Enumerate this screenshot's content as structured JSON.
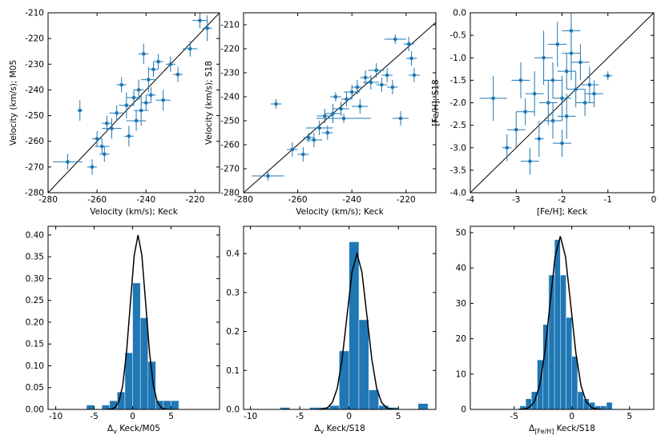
{
  "chart_data": [
    {
      "type": "scatter",
      "xlabel": "Velocity (km/s); Keck",
      "ylabel": "Velocity (km/s); M05",
      "color": "#1f77b4",
      "diagonal": true,
      "xlim": [
        -280,
        -210
      ],
      "ylim": [
        -280,
        -210
      ],
      "xticks": [
        -280,
        -260,
        -240,
        -220
      ],
      "yticks": [
        -280,
        -270,
        -260,
        -250,
        -240,
        -230,
        -220,
        -210
      ],
      "x": [
        -272,
        -267,
        -262,
        -260,
        -258,
        -256,
        -254,
        -252,
        -250,
        -248,
        -247,
        -245,
        -244,
        -243,
        -242,
        -241,
        -240,
        -239,
        -238,
        -237,
        -235,
        -233,
        -230,
        -227,
        -222,
        -215,
        -218,
        -257
      ],
      "y": [
        -268,
        -248,
        -270,
        -259,
        -262,
        -253,
        -255,
        -249,
        -238,
        -246,
        -258,
        -243,
        -252,
        -240,
        -248,
        -226,
        -245,
        -236,
        -242,
        -232,
        -229,
        -244,
        -230,
        -234,
        -224,
        -216,
        -213,
        -265
      ],
      "xerr": [
        6,
        1,
        2,
        2,
        3,
        2,
        4,
        3,
        2,
        3,
        2,
        3,
        4,
        2,
        3,
        2,
        2,
        3,
        2,
        2,
        2,
        3,
        2,
        2,
        3,
        2,
        3,
        2
      ],
      "yerr": [
        3,
        4,
        3,
        3,
        3,
        3,
        4,
        3,
        3,
        5,
        4,
        3,
        4,
        4,
        6,
        4,
        3,
        5,
        3,
        3,
        3,
        4,
        3,
        3,
        3,
        5,
        3,
        3
      ]
    },
    {
      "type": "scatter",
      "xlabel": "Velocity (km/s); Keck",
      "ylabel": "Velocity (km/s); S18",
      "color": "#1f77b4",
      "diagonal": true,
      "xlim": [
        -280,
        -209
      ],
      "ylim": [
        -280,
        -205
      ],
      "xticks": [
        -280,
        -260,
        -240,
        -220
      ],
      "yticks": [
        -280,
        -270,
        -260,
        -250,
        -240,
        -230,
        -220,
        -210
      ],
      "x": [
        -271,
        -262,
        -258,
        -256,
        -254,
        -252,
        -250,
        -249,
        -247,
        -246,
        -244,
        -243,
        -242,
        -240,
        -238,
        -237,
        -235,
        -233,
        -231,
        -229,
        -227,
        -225,
        -222,
        -219,
        -218,
        -217,
        -224,
        -268
      ],
      "y": [
        -273,
        -262,
        -264,
        -257,
        -258,
        -253,
        -248,
        -255,
        -247,
        -240,
        -245,
        -249,
        -241,
        -238,
        -236,
        -244,
        -232,
        -234,
        -229,
        -235,
        -231,
        -236,
        -249,
        -218,
        -224,
        -231,
        -216,
        -243
      ],
      "xerr": [
        6,
        2,
        2,
        2,
        3,
        5,
        3,
        2,
        3,
        2,
        3,
        10,
        2,
        3,
        2,
        3,
        2,
        3,
        3,
        2,
        2,
        2,
        3,
        2,
        2,
        2,
        4,
        2
      ],
      "yerr": [
        2,
        3,
        3,
        2,
        3,
        3,
        3,
        3,
        4,
        2,
        3,
        2,
        3,
        3,
        3,
        3,
        3,
        3,
        3,
        3,
        3,
        3,
        3,
        3,
        3,
        3,
        2,
        2
      ]
    },
    {
      "type": "scatter",
      "xlabel": "[Fe/H]; Keck",
      "ylabel": "[Fe/H]; S18",
      "color": "#1f77b4",
      "diagonal": true,
      "xlim": [
        -4,
        0
      ],
      "ylim": [
        -4,
        0
      ],
      "xticks": [
        -4,
        -3,
        -2,
        -1,
        0
      ],
      "yticks": [
        {
          "value": -4,
          "label": "-4.0"
        },
        {
          "value": -3.5,
          "label": "-3.5"
        },
        {
          "value": -3,
          "label": "-3.0"
        },
        {
          "value": -2.5,
          "label": "-2.5"
        },
        {
          "value": -2,
          "label": "-2.0"
        },
        {
          "value": -1.5,
          "label": "-1.5"
        },
        {
          "value": -1,
          "label": "-1.0"
        },
        {
          "value": -0.5,
          "label": "-0.5"
        },
        {
          "value": 0,
          "label": "0.0"
        }
      ],
      "x": [
        -3.5,
        -3.2,
        -3.0,
        -2.9,
        -2.8,
        -2.6,
        -2.5,
        -2.4,
        -2.3,
        -2.2,
        -2.2,
        -2.1,
        -2.0,
        -1.9,
        -1.9,
        -1.8,
        -1.7,
        -1.6,
        -1.5,
        -1.4,
        -1.3,
        -1.0,
        -2.7,
        -2.0,
        -1.8
      ],
      "y": [
        -1.9,
        -3.0,
        -2.6,
        -1.5,
        -2.2,
        -1.8,
        -2.8,
        -1.0,
        -2.0,
        -1.5,
        -2.4,
        -0.7,
        -1.9,
        -1.3,
        -2.3,
        -0.4,
        -1.7,
        -1.1,
        -2.0,
        -1.6,
        -1.8,
        -1.4,
        -3.3,
        -2.9,
        -0.9
      ],
      "xerr": [
        0.3,
        0.1,
        0.2,
        0.2,
        0.2,
        0.2,
        0.1,
        0.2,
        0.2,
        0.2,
        0.2,
        0.2,
        0.2,
        0.2,
        0.2,
        0.2,
        0.2,
        0.2,
        0.2,
        0.2,
        0.2,
        0.1,
        0.2,
        0.2,
        0.2
      ],
      "yerr": [
        0.5,
        0.3,
        0.4,
        0.4,
        0.3,
        0.5,
        0.4,
        0.6,
        0.5,
        0.4,
        0.4,
        0.5,
        0.5,
        0.4,
        0.5,
        0.5,
        0.4,
        0.4,
        0.3,
        0.4,
        0.3,
        0.1,
        0.3,
        0.3,
        0.6
      ]
    },
    {
      "type": "histogram",
      "xlabel": [
        "Δ",
        "v",
        " Keck/M05"
      ],
      "color": "#1f77b4",
      "fit_color": "#000000",
      "xlim": [
        -11,
        11.3
      ],
      "ylim": [
        0,
        0.42
      ],
      "xticks": [
        -10,
        -5,
        0,
        5
      ],
      "yticks": [
        {
          "value": 0,
          "label": "0.00"
        },
        {
          "value": 0.05,
          "label": "0.05"
        },
        {
          "value": 0.1,
          "label": "0.10"
        },
        {
          "value": 0.15,
          "label": "0.15"
        },
        {
          "value": 0.2,
          "label": "0.20"
        },
        {
          "value": 0.25,
          "label": "0.25"
        },
        {
          "value": 0.3,
          "label": "0.30"
        },
        {
          "value": 0.35,
          "label": "0.35"
        },
        {
          "value": 0.4,
          "label": "0.40"
        }
      ],
      "bins": [
        -6,
        -5,
        -4,
        -3,
        -2,
        -1,
        0,
        1,
        2,
        3,
        4,
        5,
        6
      ],
      "counts": [
        0.01,
        0,
        0.01,
        0.02,
        0.04,
        0.13,
        0.29,
        0.21,
        0.11,
        0.02,
        0.02,
        0.02
      ],
      "fit": {
        "x": [
          -3.3,
          -2.8,
          -2.3,
          -1.8,
          -1.3,
          -0.8,
          -0.3,
          0.2,
          0.7,
          1.2,
          1.7,
          2.2,
          2.7,
          3.2,
          3.7,
          4.2,
          4.7
        ],
        "y": [
          0.0001,
          0.0009,
          0.0044,
          0.0176,
          0.0541,
          0.1299,
          0.2426,
          0.353,
          0.4,
          0.353,
          0.2426,
          0.1299,
          0.0541,
          0.0176,
          0.0044,
          0.0009,
          0.0001
        ]
      }
    },
    {
      "type": "histogram",
      "xlabel": [
        "Δ",
        "v",
        " Keck/S18"
      ],
      "color": "#1f77b4",
      "fit_color": "#000000",
      "xlim": [
        -10.7,
        8.8
      ],
      "ylim": [
        0,
        0.47
      ],
      "xticks": [
        -10,
        -5,
        0,
        5
      ],
      "yticks": [
        {
          "value": 0,
          "label": "0.0"
        },
        {
          "value": 0.1,
          "label": "0.1"
        },
        {
          "value": 0.2,
          "label": "0.2"
        },
        {
          "value": 0.3,
          "label": "0.3"
        },
        {
          "value": 0.4,
          "label": "0.4"
        }
      ],
      "bins": [
        -7,
        -6,
        -5,
        -4,
        -3,
        -2,
        -1,
        0,
        1,
        2,
        3,
        4,
        5,
        6,
        7,
        8
      ],
      "counts": [
        0.005,
        0,
        0,
        0.005,
        0.005,
        0.01,
        0.15,
        0.43,
        0.23,
        0.05,
        0.01,
        0.005,
        0,
        0,
        0.015
      ],
      "fit": {
        "x": [
          -3.2,
          -2.7,
          -2.2,
          -1.7,
          -1.2,
          -0.7,
          -0.2,
          0.3,
          0.8,
          1.3,
          1.8,
          2.3,
          2.8,
          3.3,
          3.8,
          4.3,
          4.8
        ],
        "y": [
          0.0001,
          0.0009,
          0.0044,
          0.0176,
          0.0541,
          0.1299,
          0.2426,
          0.353,
          0.4,
          0.353,
          0.2426,
          0.1299,
          0.0541,
          0.0176,
          0.0044,
          0.0009,
          0.0001
        ]
      }
    },
    {
      "type": "histogram",
      "xlabel": [
        "Δ",
        "[Fe/H]",
        " Keck/S18"
      ],
      "color": "#1f77b4",
      "fit_color": "#000000",
      "xlim": [
        -8.8,
        7.1
      ],
      "ylim": [
        0,
        51.8
      ],
      "xticks": [
        -5,
        0,
        5
      ],
      "yticks": [
        0,
        10,
        20,
        30,
        40,
        50
      ],
      "bins": [
        -4.5,
        -4,
        -3.5,
        -3,
        -2.5,
        -2,
        -1.5,
        -1,
        -0.5,
        0,
        0.5,
        1,
        1.5,
        2,
        2.5,
        3,
        3.5
      ],
      "counts": [
        1,
        3,
        5,
        14,
        24,
        38,
        48,
        38,
        26,
        15,
        5,
        3,
        2,
        1,
        1,
        2
      ],
      "fit": {
        "x": [
          -4.6,
          -4.15,
          -3.7,
          -3.25,
          -2.8,
          -2.35,
          -1.9,
          -1.45,
          -1,
          -0.55,
          -0.1,
          0.35,
          0.8,
          1.25,
          1.7,
          2.15,
          2.6
        ],
        "y": [
          0.016,
          0.11,
          0.54,
          2.15,
          6.63,
          15.9,
          29.7,
          43.2,
          49,
          43.2,
          29.7,
          15.9,
          6.63,
          2.15,
          0.54,
          0.11,
          0.016
        ]
      }
    }
  ]
}
